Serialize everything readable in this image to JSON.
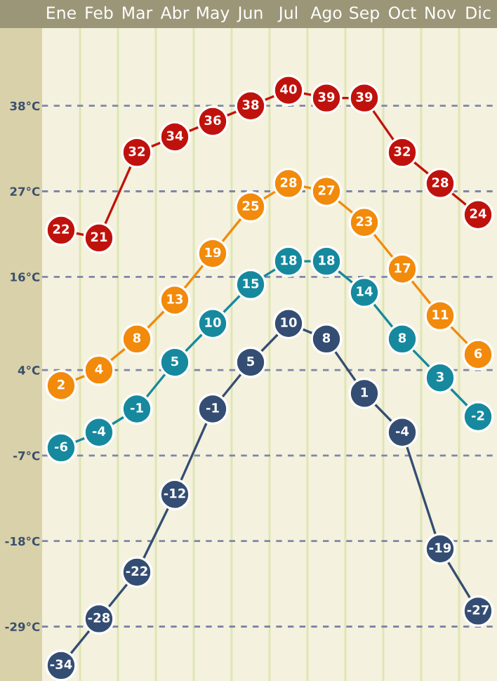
{
  "chart_data": {
    "type": "line",
    "categories": [
      "Ene",
      "Feb",
      "Mar",
      "Abr",
      "May",
      "Jun",
      "Jul",
      "Ago",
      "Sep",
      "Oct",
      "Nov",
      "Dic"
    ],
    "series": [
      {
        "color": "#c0120c",
        "values": [
          22,
          21,
          32,
          34,
          36,
          38,
          40,
          39,
          39,
          32,
          28,
          24
        ]
      },
      {
        "color": "#f28a0c",
        "values": [
          2,
          4,
          8,
          13,
          19,
          25,
          28,
          27,
          23,
          17,
          11,
          6
        ]
      },
      {
        "color": "#16899e",
        "values": [
          -6,
          -4,
          -1,
          5,
          10,
          15,
          18,
          18,
          14,
          8,
          3,
          -2
        ]
      },
      {
        "color": "#344d72",
        "values": [
          -34,
          -28,
          -22,
          -12,
          -1,
          5,
          10,
          8,
          1,
          -4,
          -19,
          -27
        ]
      }
    ],
    "ylim": [
      -36,
      48
    ],
    "yticks": [
      {
        "value": 38,
        "label": "38°C"
      },
      {
        "value": 27,
        "label": "27°C"
      },
      {
        "value": 16,
        "label": "16°C"
      },
      {
        "value": 4,
        "label": "4°C"
      },
      {
        "value": -7,
        "label": "-7°C"
      },
      {
        "value": -18,
        "label": "-18°C"
      },
      {
        "value": -29,
        "label": "-29°C"
      }
    ],
    "grid": "y",
    "marker": "circle",
    "line_style": "solid",
    "data_labels": true
  }
}
